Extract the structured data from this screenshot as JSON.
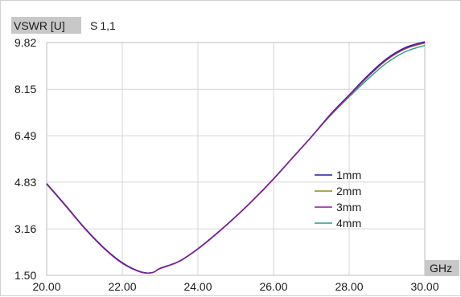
{
  "chart_data": {
    "type": "line",
    "ylabel": "VSWR [U]",
    "title_main": "S",
    "title_sub": "1,1",
    "xlabel": "GHz",
    "xlim": [
      20,
      30
    ],
    "ylim": [
      1.5,
      9.82
    ],
    "xticks": [
      "20.00",
      "22.00",
      "24.00",
      "26.00",
      "28.00",
      "30.00"
    ],
    "yticks": [
      "1.50",
      "3.16",
      "4.83",
      "6.49",
      "8.15",
      "9.82"
    ],
    "grid": true,
    "legend_position": "center-right",
    "series": [
      {
        "name": "1mm",
        "color": "#1f1f9c",
        "x": [
          20,
          20.5,
          21,
          21.5,
          22,
          22.5,
          22.8,
          23,
          23.5,
          24,
          24.5,
          25,
          25.5,
          26,
          26.5,
          27,
          27.5,
          28,
          28.5,
          29,
          29.5,
          30
        ],
        "y": [
          4.78,
          4.0,
          3.2,
          2.5,
          1.95,
          1.62,
          1.6,
          1.75,
          2.0,
          2.45,
          3.0,
          3.6,
          4.25,
          4.95,
          5.7,
          6.45,
          7.25,
          7.95,
          8.65,
          9.25,
          9.65,
          9.85
        ]
      },
      {
        "name": "2mm",
        "color": "#8a8a1a",
        "x": [
          20,
          20.5,
          21,
          21.5,
          22,
          22.5,
          22.8,
          23,
          23.5,
          24,
          24.5,
          25,
          25.5,
          26,
          26.5,
          27,
          27.5,
          28,
          28.5,
          29,
          29.5,
          30
        ],
        "y": [
          4.78,
          4.0,
          3.2,
          2.5,
          1.95,
          1.62,
          1.6,
          1.75,
          2.0,
          2.45,
          3.0,
          3.6,
          4.25,
          4.95,
          5.7,
          6.45,
          7.22,
          7.92,
          8.6,
          9.2,
          9.6,
          9.8
        ]
      },
      {
        "name": "3mm",
        "color": "#8a1a9a",
        "x": [
          20,
          20.5,
          21,
          21.5,
          22,
          22.5,
          22.8,
          23,
          23.5,
          24,
          24.5,
          25,
          25.5,
          26,
          26.5,
          27,
          27.5,
          28,
          28.5,
          29,
          29.5,
          30
        ],
        "y": [
          4.76,
          3.98,
          3.18,
          2.48,
          1.93,
          1.61,
          1.6,
          1.74,
          1.99,
          2.44,
          2.99,
          3.59,
          4.24,
          4.94,
          5.69,
          6.44,
          7.23,
          7.93,
          8.62,
          9.22,
          9.62,
          9.83
        ]
      },
      {
        "name": "4mm",
        "color": "#2a9a8a",
        "x": [
          20,
          20.5,
          21,
          21.5,
          22,
          22.5,
          22.8,
          23,
          23.5,
          24,
          24.5,
          25,
          25.5,
          26,
          26.5,
          27,
          27.5,
          28,
          28.5,
          29,
          29.5,
          30
        ],
        "y": [
          4.78,
          4.0,
          3.2,
          2.5,
          1.95,
          1.62,
          1.6,
          1.75,
          2.0,
          2.45,
          3.0,
          3.6,
          4.25,
          4.95,
          5.7,
          6.45,
          7.2,
          7.88,
          8.52,
          9.1,
          9.5,
          9.72
        ]
      }
    ]
  }
}
